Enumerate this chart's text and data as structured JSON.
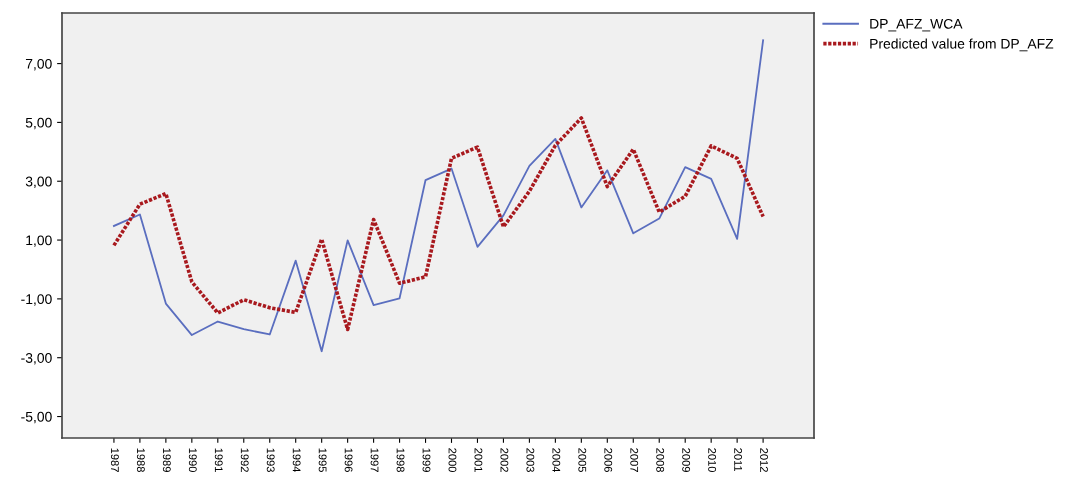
{
  "chart_data": {
    "type": "line",
    "categories": [
      "1987",
      "1988",
      "1989",
      "1990",
      "1991",
      "1992",
      "1993",
      "1994",
      "1995",
      "1996",
      "1997",
      "1998",
      "1999",
      "2000",
      "2001",
      "2002",
      "2003",
      "2004",
      "2005",
      "2006",
      "2007",
      "2008",
      "2009",
      "2010",
      "2011",
      "2012"
    ],
    "series": [
      {
        "name": "DP_AFZ_WCA",
        "color": "#5a6ebf",
        "line_style": "solid",
        "values": [
          1.48,
          1.87,
          -1.16,
          -2.23,
          -1.77,
          -2.03,
          -2.21,
          0.3,
          -2.78,
          0.99,
          -1.21,
          -0.98,
          3.04,
          3.43,
          0.77,
          1.84,
          3.52,
          4.44,
          2.11,
          3.37,
          1.23,
          1.73,
          3.48,
          3.08,
          1.04,
          7.79
        ]
      },
      {
        "name": "Predicted value from DP_AFZ",
        "color": "#a8191e",
        "line_style": "dotted",
        "values": [
          0.82,
          2.22,
          2.58,
          -0.42,
          -1.48,
          -1.03,
          -1.3,
          -1.46,
          1.03,
          -2.04,
          1.7,
          -0.47,
          -0.25,
          3.78,
          4.16,
          1.45,
          2.66,
          4.22,
          5.15,
          2.82,
          4.09,
          1.95,
          2.49,
          4.2,
          3.78,
          1.8
        ]
      }
    ],
    "ylim": [
      -5.73,
      8.72
    ],
    "yticks": [
      {
        "value": -5,
        "label": "-5,00"
      },
      {
        "value": -3,
        "label": "-3,00"
      },
      {
        "value": -1,
        "label": "-1,00"
      },
      {
        "value": 1,
        "label": "1,00"
      },
      {
        "value": 3,
        "label": "3,00"
      },
      {
        "value": 5,
        "label": "5,00"
      },
      {
        "value": 7,
        "label": "7,00"
      }
    ],
    "grid": false,
    "legend": "top right",
    "marker": "none"
  }
}
